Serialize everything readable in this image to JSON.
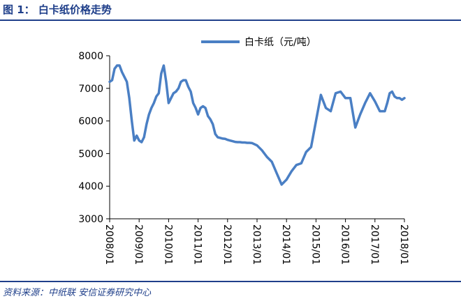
{
  "figure": {
    "title": "图 1： 白卡纸价格走势",
    "source": "资料来源：中纸联 安信证券研究中心"
  },
  "colors": {
    "brand": "#1f3f8a",
    "series": "#4a7fc4"
  },
  "chart_data": {
    "type": "line",
    "title": "",
    "xlabel": "",
    "ylabel": "",
    "ylim": [
      3000,
      8000
    ],
    "yticks": [
      3000,
      4000,
      5000,
      6000,
      7000,
      8000
    ],
    "xticks": [
      "2008/01",
      "2009/01",
      "2010/01",
      "2011/01",
      "2012/01",
      "2013/01",
      "2014/01",
      "2015/01",
      "2016/01",
      "2017/01",
      "2018/01"
    ],
    "xrange": [
      0,
      120
    ],
    "legend": "top-center",
    "grid": false,
    "series": [
      {
        "name": "白卡纸（元/吨）",
        "x": [
          0,
          1,
          2,
          3,
          4,
          5,
          6,
          7,
          8,
          9,
          10,
          11,
          12,
          13,
          14,
          15,
          16,
          17,
          18,
          19,
          20,
          21,
          22,
          23,
          24,
          25,
          26,
          27,
          28,
          29,
          30,
          31,
          32,
          33,
          34,
          35,
          36,
          37,
          38,
          39,
          40,
          41,
          42,
          43,
          44,
          45,
          46,
          47,
          48,
          49,
          50,
          51,
          52,
          53,
          54,
          55,
          56,
          57,
          58,
          60,
          62,
          64,
          66,
          68,
          70,
          72,
          74,
          76,
          78,
          80,
          82,
          84,
          86,
          88,
          90,
          92,
          94,
          96,
          98,
          100,
          102,
          104,
          106,
          108,
          110,
          112,
          113,
          114,
          115,
          116,
          117,
          118,
          119,
          120
        ],
        "values": [
          7200,
          7250,
          7600,
          7700,
          7700,
          7500,
          7350,
          7200,
          6700,
          6000,
          5400,
          5550,
          5400,
          5350,
          5500,
          5900,
          6200,
          6400,
          6550,
          6750,
          6850,
          7450,
          7700,
          7200,
          6550,
          6700,
          6850,
          6900,
          7000,
          7200,
          7250,
          7250,
          7050,
          6900,
          6550,
          6400,
          6200,
          6400,
          6450,
          6400,
          6150,
          6050,
          5900,
          5600,
          5500,
          5480,
          5460,
          5450,
          5420,
          5400,
          5380,
          5360,
          5350,
          5350,
          5340,
          5340,
          5330,
          5330,
          5320,
          5250,
          5100,
          4900,
          4750,
          4400,
          4050,
          4200,
          4450,
          4650,
          4700,
          5050,
          5200,
          6000,
          6800,
          6400,
          6300,
          6850,
          6900,
          6700,
          6700,
          5800,
          6200,
          6550,
          6850,
          6600,
          6300,
          6300,
          6550,
          6850,
          6900,
          6750,
          6700,
          6700,
          6650,
          6700
        ]
      }
    ]
  }
}
